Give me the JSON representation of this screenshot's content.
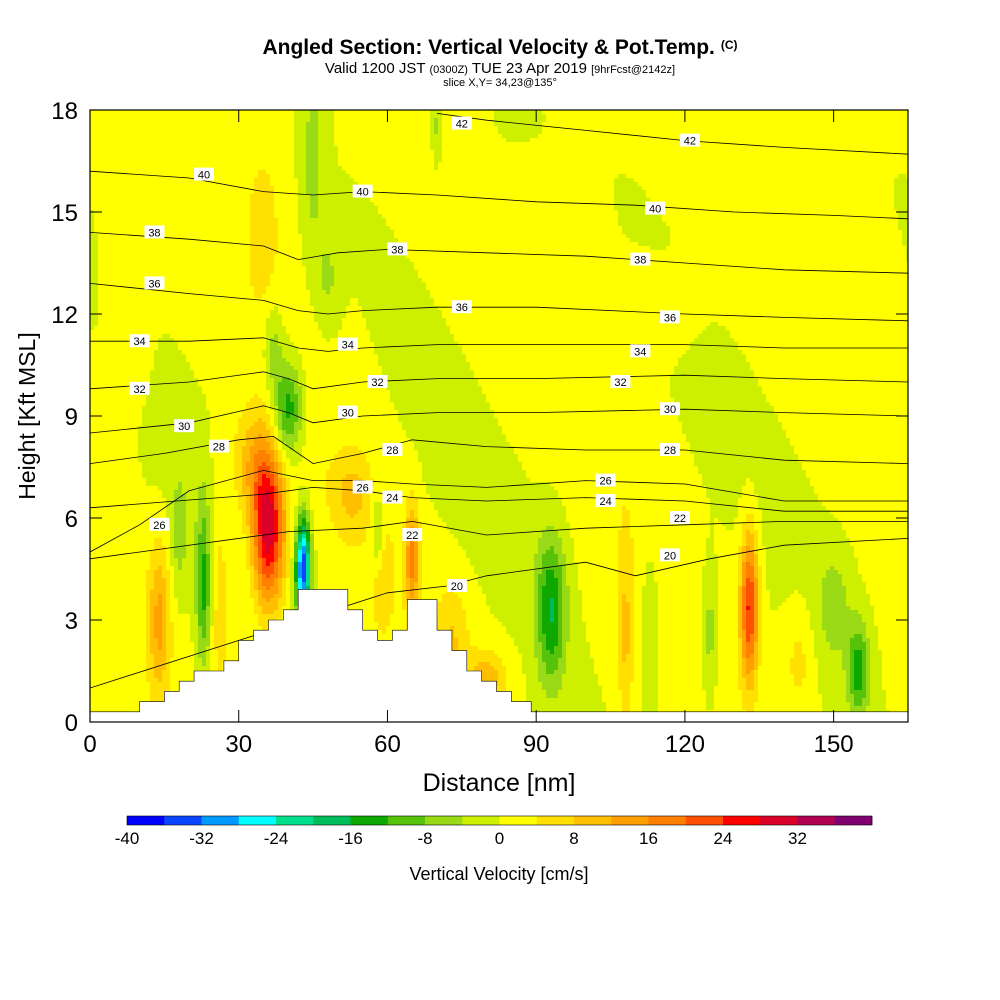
{
  "title": {
    "main": "Angled Section: Vertical Velocity & Pot.Temp.",
    "unit_tag": "(C)",
    "valid_prefix": "Valid 1200 JST",
    "valid_utc": "(0300Z)",
    "valid_date": "TUE 23 Apr 2019",
    "forecast": "[9hrFcst@2142z]",
    "slice": "slice X,Y= 34,23@135°"
  },
  "chart_data": {
    "type": "heatmap",
    "xlabel": "Distance [nm]",
    "ylabel": "Height [Kft MSL]",
    "xlim": [
      0,
      165
    ],
    "ylim": [
      0,
      18
    ],
    "x_ticks": [
      "0",
      "30",
      "60",
      "90",
      "120",
      "150"
    ],
    "y_ticks": [
      "0",
      "3",
      "6",
      "9",
      "12",
      "15",
      "18"
    ],
    "x_tick_values": [
      0,
      30,
      60,
      90,
      120,
      150
    ],
    "y_tick_values": [
      0,
      3,
      6,
      9,
      12,
      15,
      18
    ],
    "colorbar": {
      "label": "Vertical Velocity [cm/s]",
      "tick_labels": [
        "-40",
        "-32",
        "-24",
        "-16",
        "-8",
        "0",
        "8",
        "16",
        "24",
        "32"
      ],
      "tick_values": [
        -40,
        -32,
        -24,
        -16,
        -8,
        0,
        8,
        16,
        24,
        32
      ],
      "range": [
        -40,
        40
      ],
      "bin_width": 4,
      "colors": [
        "#0000ff",
        "#0a46ff",
        "#0099ff",
        "#00ffff",
        "#00e08c",
        "#00bd5c",
        "#0fa800",
        "#57c20a",
        "#99d916",
        "#ccf000",
        "#ffff00",
        "#ffe000",
        "#ffbf00",
        "#ff9f00",
        "#ff7f00",
        "#ff4f00",
        "#ff0000",
        "#d9002a",
        "#b00050",
        "#800070"
      ]
    },
    "terrain_profile": {
      "x": [
        0,
        10,
        15,
        18,
        21,
        24,
        27,
        30,
        33,
        36,
        39,
        42,
        45,
        48,
        52,
        55,
        58,
        61,
        64,
        67,
        70,
        73,
        76,
        79,
        82,
        85,
        89,
        165
      ],
      "y": [
        0.3,
        0.6,
        0.9,
        1.2,
        1.5,
        1.5,
        1.8,
        2.4,
        2.7,
        3.0,
        3.3,
        3.9,
        3.9,
        3.9,
        3.3,
        2.7,
        2.4,
        2.7,
        3.6,
        3.6,
        2.7,
        2.1,
        1.5,
        1.2,
        0.9,
        0.6,
        0.3,
        0.3
      ]
    },
    "theta_contours": {
      "unit": "C",
      "lines": [
        {
          "label": "20",
          "x": [
            0,
            60,
            72,
            80,
            100,
            110,
            125,
            140,
            165
          ],
          "y": [
            1.0,
            3.8,
            4.0,
            4.3,
            4.7,
            4.3,
            4.8,
            5.2,
            5.4
          ]
        },
        {
          "label": "22",
          "x": [
            0,
            40,
            55,
            65,
            80,
            100,
            120,
            140,
            165
          ],
          "y": [
            4.8,
            5.6,
            5.7,
            5.9,
            5.5,
            5.7,
            5.8,
            5.9,
            5.9
          ]
        },
        {
          "label": "24",
          "x": [
            0,
            35,
            45,
            55,
            65,
            80,
            100,
            120,
            140,
            165
          ],
          "y": [
            6.3,
            6.7,
            6.9,
            6.8,
            6.6,
            6.5,
            6.6,
            6.5,
            6.2,
            6.2
          ]
        },
        {
          "label": "26",
          "x": [
            0,
            10,
            20,
            35,
            45,
            55,
            65,
            80,
            100,
            120,
            140,
            165
          ],
          "y": [
            5.0,
            5.8,
            6.8,
            7.4,
            7.1,
            7.1,
            7.0,
            6.9,
            7.1,
            7.0,
            6.5,
            6.5
          ]
        },
        {
          "label": "28",
          "x": [
            0,
            15,
            30,
            37,
            45,
            55,
            65,
            80,
            100,
            120,
            140,
            165
          ],
          "y": [
            7.6,
            7.9,
            8.3,
            8.4,
            7.6,
            7.9,
            8.3,
            8.1,
            8.0,
            8.0,
            7.7,
            7.6
          ]
        },
        {
          "label": "30",
          "x": [
            0,
            20,
            35,
            40,
            45,
            55,
            70,
            90,
            120,
            140,
            165
          ],
          "y": [
            8.5,
            8.8,
            9.3,
            9.1,
            8.8,
            9.0,
            9.1,
            9.1,
            9.2,
            9.1,
            9.0
          ]
        },
        {
          "label": "32",
          "x": [
            0,
            20,
            35,
            40,
            45,
            55,
            70,
            90,
            120,
            140,
            165
          ],
          "y": [
            9.8,
            10.0,
            10.3,
            10.1,
            9.8,
            10.0,
            10.1,
            10.1,
            10.2,
            10.1,
            10.0
          ]
        },
        {
          "label": "34",
          "x": [
            0,
            20,
            35,
            42,
            48,
            55,
            70,
            90,
            120,
            140,
            165
          ],
          "y": [
            11.2,
            11.2,
            11.3,
            11.0,
            10.9,
            11.0,
            11.1,
            11.1,
            11.1,
            11.0,
            11.0
          ]
        },
        {
          "label": "36",
          "x": [
            0,
            20,
            35,
            42,
            48,
            55,
            70,
            90,
            120,
            140,
            165
          ],
          "y": [
            12.9,
            12.6,
            12.4,
            12.1,
            12.0,
            12.1,
            12.2,
            12.2,
            12.0,
            11.9,
            11.8
          ]
        },
        {
          "label": "38",
          "x": [
            0,
            20,
            35,
            42,
            50,
            60,
            80,
            100,
            120,
            140,
            165
          ],
          "y": [
            14.4,
            14.2,
            14.0,
            13.6,
            13.8,
            13.9,
            13.8,
            13.7,
            13.5,
            13.3,
            13.2
          ]
        },
        {
          "label": "40",
          "x": [
            0,
            20,
            35,
            45,
            55,
            70,
            90,
            110,
            130,
            150,
            165
          ],
          "y": [
            16.2,
            16.0,
            15.6,
            15.5,
            15.6,
            15.5,
            15.3,
            15.2,
            15.0,
            14.9,
            14.8
          ]
        },
        {
          "label": "42",
          "x": [
            70,
            80,
            100,
            120,
            140,
            165
          ],
          "y": [
            17.9,
            17.7,
            17.4,
            17.1,
            16.9,
            16.7
          ]
        }
      ],
      "labels": [
        {
          "text": "42",
          "x": 75,
          "y": 17.6
        },
        {
          "text": "42",
          "x": 121,
          "y": 17.1
        },
        {
          "text": "40",
          "x": 23,
          "y": 16.1
        },
        {
          "text": "40",
          "x": 55,
          "y": 15.6
        },
        {
          "text": "40",
          "x": 114,
          "y": 15.1
        },
        {
          "text": "38",
          "x": 13,
          "y": 14.4
        },
        {
          "text": "38",
          "x": 62,
          "y": 13.9
        },
        {
          "text": "38",
          "x": 111,
          "y": 13.6
        },
        {
          "text": "36",
          "x": 13,
          "y": 12.9
        },
        {
          "text": "36",
          "x": 75,
          "y": 12.2
        },
        {
          "text": "36",
          "x": 117,
          "y": 11.9
        },
        {
          "text": "34",
          "x": 10,
          "y": 11.2
        },
        {
          "text": "34",
          "x": 52,
          "y": 11.1
        },
        {
          "text": "34",
          "x": 111,
          "y": 10.9
        },
        {
          "text": "32",
          "x": 10,
          "y": 9.8
        },
        {
          "text": "32",
          "x": 58,
          "y": 10.0
        },
        {
          "text": "32",
          "x": 107,
          "y": 10.0
        },
        {
          "text": "30",
          "x": 19,
          "y": 8.7
        },
        {
          "text": "30",
          "x": 52,
          "y": 9.1
        },
        {
          "text": "30",
          "x": 117,
          "y": 9.2
        },
        {
          "text": "28",
          "x": 26,
          "y": 8.1
        },
        {
          "text": "28",
          "x": 61,
          "y": 8.0
        },
        {
          "text": "28",
          "x": 117,
          "y": 8.0
        },
        {
          "text": "26",
          "x": 14,
          "y": 5.8
        },
        {
          "text": "26",
          "x": 55,
          "y": 6.9
        },
        {
          "text": "26",
          "x": 104,
          "y": 7.1
        },
        {
          "text": "24",
          "x": 61,
          "y": 6.6
        },
        {
          "text": "24",
          "x": 104,
          "y": 6.5
        },
        {
          "text": "22",
          "x": 65,
          "y": 5.5
        },
        {
          "text": "22",
          "x": 119,
          "y": 6.0
        },
        {
          "text": "20",
          "x": 74,
          "y": 4.0
        },
        {
          "text": "20",
          "x": 117,
          "y": 4.9
        }
      ]
    },
    "velocity_features": [
      {
        "name": "updraft",
        "x": 36,
        "y": 5.6,
        "sx": 3.2,
        "sy": 2.2,
        "w": 30
      },
      {
        "name": "updraft",
        "x": 33,
        "y": 7.5,
        "sx": 4.0,
        "sy": 1.6,
        "w": 10
      },
      {
        "name": "updraft",
        "x": 14,
        "y": 3.0,
        "sx": 2.2,
        "sy": 2.2,
        "w": 12
      },
      {
        "name": "updraft",
        "x": 26,
        "y": 3.8,
        "sx": 2.8,
        "sy": 3.5,
        "w": 6
      },
      {
        "name": "updraft",
        "x": 35,
        "y": 14.5,
        "sx": 3.5,
        "sy": 2.5,
        "w": 5
      },
      {
        "name": "updraft",
        "x": 8,
        "y": 12.5,
        "sx": 4.0,
        "sy": 3.0,
        "w": 4
      },
      {
        "name": "updraft",
        "x": 65,
        "y": 4.8,
        "sx": 1.4,
        "sy": 1.6,
        "w": 16
      },
      {
        "name": "updraft",
        "x": 59,
        "y": 4.3,
        "sx": 2.2,
        "sy": 1.6,
        "w": 6
      },
      {
        "name": "updraft",
        "x": 53,
        "y": 6.7,
        "sx": 4.0,
        "sy": 1.2,
        "w": 7
      },
      {
        "name": "updraft",
        "x": 73,
        "y": 2.5,
        "sx": 3.5,
        "sy": 1.5,
        "w": 7
      },
      {
        "name": "updraft",
        "x": 80,
        "y": 1.3,
        "sx": 4.0,
        "sy": 0.8,
        "w": 10
      },
      {
        "name": "updraft",
        "x": 133,
        "y": 3.4,
        "sx": 1.8,
        "sy": 2.2,
        "w": 24
      },
      {
        "name": "updraft",
        "x": 108,
        "y": 2.5,
        "sx": 1.6,
        "sy": 2.8,
        "w": 8
      },
      {
        "name": "updraft",
        "x": 143,
        "y": 1.8,
        "sx": 3.0,
        "sy": 1.5,
        "w": 5
      },
      {
        "name": "updraft",
        "x": 112,
        "y": 12.0,
        "sx": 9.0,
        "sy": 1.2,
        "w": 3
      },
      {
        "name": "downdraft",
        "x": 43,
        "y": 4.5,
        "sx": 1.5,
        "sy": 1.5,
        "w": -36
      },
      {
        "name": "downdraft",
        "x": 40,
        "y": 9.2,
        "sx": 2.8,
        "sy": 1.4,
        "w": -16
      },
      {
        "name": "downdraft",
        "x": 37,
        "y": 11.0,
        "sx": 2.0,
        "sy": 1.4,
        "w": -7
      },
      {
        "name": "downdraft",
        "x": 45,
        "y": 16.5,
        "sx": 2.2,
        "sy": 2.8,
        "w": -6
      },
      {
        "name": "downdraft",
        "x": 48,
        "y": 13.0,
        "sx": 2.5,
        "sy": 1.5,
        "w": -5
      },
      {
        "name": "downdraft",
        "x": 23,
        "y": 4.0,
        "sx": 1.6,
        "sy": 2.5,
        "w": -15
      },
      {
        "name": "downdraft",
        "x": 18,
        "y": 5.5,
        "sx": 1.8,
        "sy": 1.8,
        "w": -6
      },
      {
        "name": "downdraft",
        "x": 58,
        "y": 5.5,
        "sx": 1.4,
        "sy": 1.2,
        "w": -9
      },
      {
        "name": "downdraft",
        "x": 93,
        "y": 3.3,
        "sx": 3.0,
        "sy": 2.2,
        "w": -16
      },
      {
        "name": "downdraft",
        "x": 113,
        "y": 2.5,
        "sx": 1.6,
        "sy": 2.5,
        "w": -6
      },
      {
        "name": "downdraft",
        "x": 125,
        "y": 2.6,
        "sx": 1.5,
        "sy": 2.0,
        "w": -7
      },
      {
        "name": "downdraft",
        "x": 155,
        "y": 1.5,
        "sx": 2.2,
        "sy": 1.4,
        "w": -14
      },
      {
        "name": "downdraft",
        "x": 150,
        "y": 3.4,
        "sx": 3.5,
        "sy": 1.7,
        "w": -6
      },
      {
        "name": "downdraft",
        "x": 86,
        "y": 17.7,
        "sx": 4.0,
        "sy": 0.6,
        "w": -4
      },
      {
        "name": "downdraft",
        "x": 70,
        "y": 17.5,
        "sx": 1.0,
        "sy": 1.0,
        "w": -6
      }
    ]
  }
}
